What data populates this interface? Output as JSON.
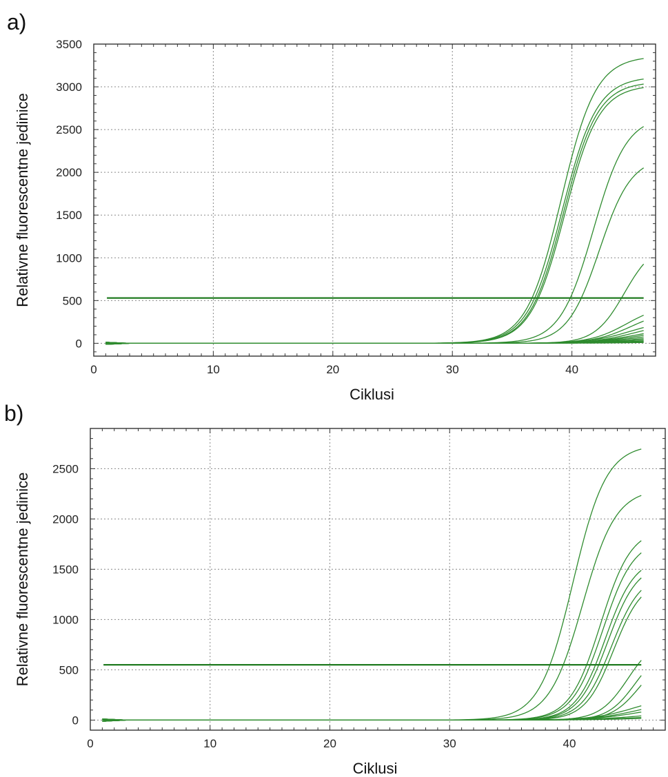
{
  "colors": {
    "curve": "#2e8b2e",
    "threshold": "#1f7a1f",
    "axis": "#333333",
    "grid": "#888888"
  },
  "chart_data": [
    {
      "panel_label": "a)",
      "type": "line",
      "xlabel": "Ciklusi",
      "ylabel": "Relativne fluorescentne jedinice",
      "xlim": [
        0,
        47
      ],
      "ylim": [
        -150,
        3500
      ],
      "xticks": [
        0,
        10,
        20,
        30,
        40
      ],
      "yticks": [
        0,
        500,
        1000,
        1500,
        2000,
        2500,
        3000,
        3500
      ],
      "grid": true,
      "threshold": 530,
      "cycle_range": [
        1,
        46
      ],
      "series": [
        {
          "max": 3360,
          "ct": 39.1,
          "k": 1.1
        },
        {
          "max": 3120,
          "ct": 39.2,
          "k": 1.1
        },
        {
          "max": 3060,
          "ct": 39.3,
          "k": 1.12
        },
        {
          "max": 3020,
          "ct": 39.4,
          "k": 1.12
        },
        {
          "max": 2660,
          "ct": 41.8,
          "k": 1.15
        },
        {
          "max": 2180,
          "ct": 42.3,
          "k": 1.2
        },
        {
          "max": 1180,
          "ct": 44.4,
          "k": 1.3
        },
        {
          "max": 460,
          "ct": 44.6,
          "k": 1.05
        },
        {
          "max": 400,
          "ct": 45.0,
          "k": 1.0
        },
        {
          "max": 290,
          "ct": 45.0,
          "k": 0.9
        },
        {
          "max": 250,
          "ct": 45.3,
          "k": 0.9
        },
        {
          "max": 200,
          "ct": 45.5,
          "k": 0.8
        },
        {
          "max": 170,
          "ct": 45.6,
          "k": 0.8
        },
        {
          "max": 140,
          "ct": 45.8,
          "k": 0.75
        },
        {
          "max": 110,
          "ct": 46.0,
          "k": 0.7
        },
        {
          "max": 85,
          "ct": 46.2,
          "k": 0.7
        },
        {
          "max": 60,
          "ct": 46.4,
          "k": 0.65
        },
        {
          "max": 40,
          "ct": 46.6,
          "k": 0.6
        },
        {
          "max": 22,
          "ct": 47.0,
          "k": 0.6
        }
      ]
    },
    {
      "panel_label": "b)",
      "type": "line",
      "xlabel": "Ciklusi",
      "ylabel": "Relativne fluorescentne jedinice",
      "xlim": [
        0,
        48
      ],
      "ylim": [
        -100,
        2900
      ],
      "xticks": [
        0,
        10,
        20,
        30,
        40
      ],
      "yticks": [
        0,
        500,
        1000,
        1500,
        2000,
        2500
      ],
      "grid": true,
      "threshold": 550,
      "cycle_range": [
        1,
        46
      ],
      "series": [
        {
          "max": 2740,
          "ct": 40.3,
          "k": 1.15
        },
        {
          "max": 2300,
          "ct": 41.1,
          "k": 1.15
        },
        {
          "max": 1910,
          "ct": 42.6,
          "k": 1.25
        },
        {
          "max": 1800,
          "ct": 42.8,
          "k": 1.25
        },
        {
          "max": 1620,
          "ct": 43.0,
          "k": 1.3
        },
        {
          "max": 1560,
          "ct": 43.2,
          "k": 1.3
        },
        {
          "max": 1460,
          "ct": 43.5,
          "k": 1.3
        },
        {
          "max": 1400,
          "ct": 43.7,
          "k": 1.35
        },
        {
          "max": 830,
          "ct": 44.9,
          "k": 1.35
        },
        {
          "max": 730,
          "ct": 45.5,
          "k": 1.4
        },
        {
          "max": 640,
          "ct": 45.8,
          "k": 1.4
        },
        {
          "max": 250,
          "ct": 45.5,
          "k": 0.9
        },
        {
          "max": 200,
          "ct": 45.8,
          "k": 0.85
        },
        {
          "max": 160,
          "ct": 46.0,
          "k": 0.8
        },
        {
          "max": 90,
          "ct": 46.3,
          "k": 0.7
        },
        {
          "max": 60,
          "ct": 46.6,
          "k": 0.65
        },
        {
          "max": 40,
          "ct": 47.0,
          "k": 0.6
        }
      ]
    }
  ]
}
